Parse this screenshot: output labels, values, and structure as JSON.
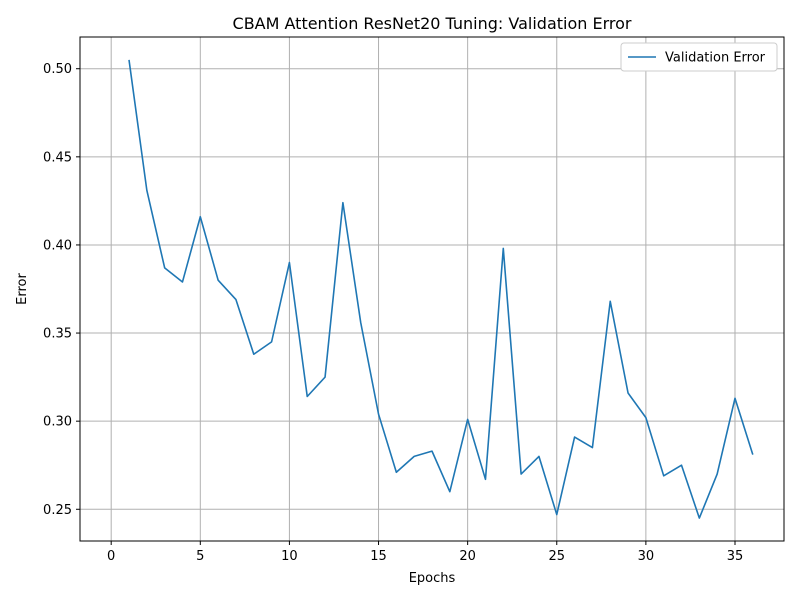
{
  "chart_data": {
    "type": "line",
    "title": "CBAM Attention ResNet20 Tuning: Validation Error",
    "xlabel": "Epochs",
    "ylabel": "Error",
    "xlim": [
      -1.75,
      37.75
    ],
    "ylim": [
      0.232,
      0.518
    ],
    "xticks": [
      0,
      5,
      10,
      15,
      20,
      25,
      30,
      35
    ],
    "xtick_labels": [
      "0",
      "5",
      "10",
      "15",
      "20",
      "25",
      "30",
      "35"
    ],
    "yticks": [
      0.25,
      0.3,
      0.35,
      0.4,
      0.45,
      0.5
    ],
    "ytick_labels": [
      "0.25",
      "0.30",
      "0.35",
      "0.40",
      "0.45",
      "0.50"
    ],
    "grid": true,
    "legend_position": "top-right",
    "series": [
      {
        "name": "Validation Error",
        "color": "#1f77b4",
        "x": [
          1,
          2,
          3,
          4,
          5,
          6,
          7,
          8,
          9,
          10,
          11,
          12,
          13,
          14,
          15,
          16,
          17,
          18,
          19,
          20,
          21,
          22,
          23,
          24,
          25,
          26,
          27,
          28,
          29,
          30,
          31,
          32,
          33,
          34,
          35,
          36
        ],
        "values": [
          0.505,
          0.431,
          0.387,
          0.379,
          0.416,
          0.38,
          0.369,
          0.338,
          0.345,
          0.39,
          0.314,
          0.325,
          0.424,
          0.356,
          0.304,
          0.271,
          0.28,
          0.283,
          0.26,
          0.301,
          0.267,
          0.398,
          0.27,
          0.28,
          0.247,
          0.291,
          0.285,
          0.368,
          0.316,
          0.302,
          0.269,
          0.275,
          0.245,
          0.27,
          0.313,
          0.281
        ]
      }
    ]
  }
}
